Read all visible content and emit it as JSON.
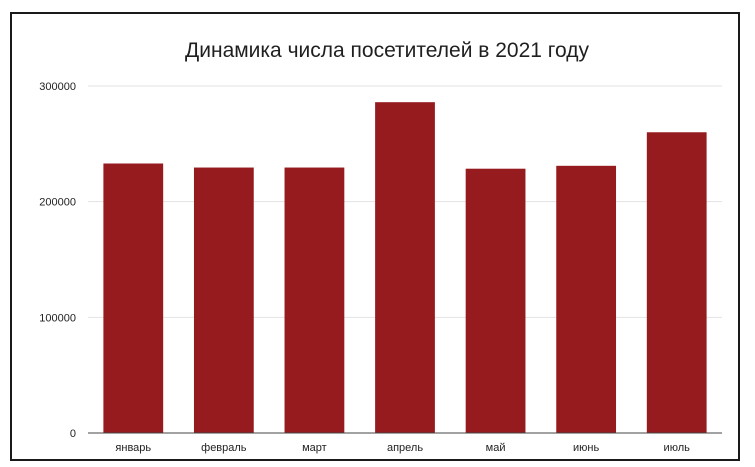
{
  "chart_data": {
    "type": "bar",
    "title": "Динамика числа посетителей в 2021 году",
    "xlabel": "",
    "ylabel": "",
    "categories": [
      "январь",
      "февраль",
      "март",
      "апрель",
      "май",
      "июнь",
      "июль"
    ],
    "values": [
      233000,
      229500,
      229500,
      286000,
      228500,
      231000,
      260000
    ],
    "ylim": [
      0,
      300000
    ],
    "yticks": [
      "0",
      "100000",
      "200000",
      "300000"
    ],
    "grid": true,
    "legend": "none",
    "colors": {
      "bar": "#961b1e",
      "grid": "#e3e3e3",
      "axis": "#444444"
    }
  }
}
